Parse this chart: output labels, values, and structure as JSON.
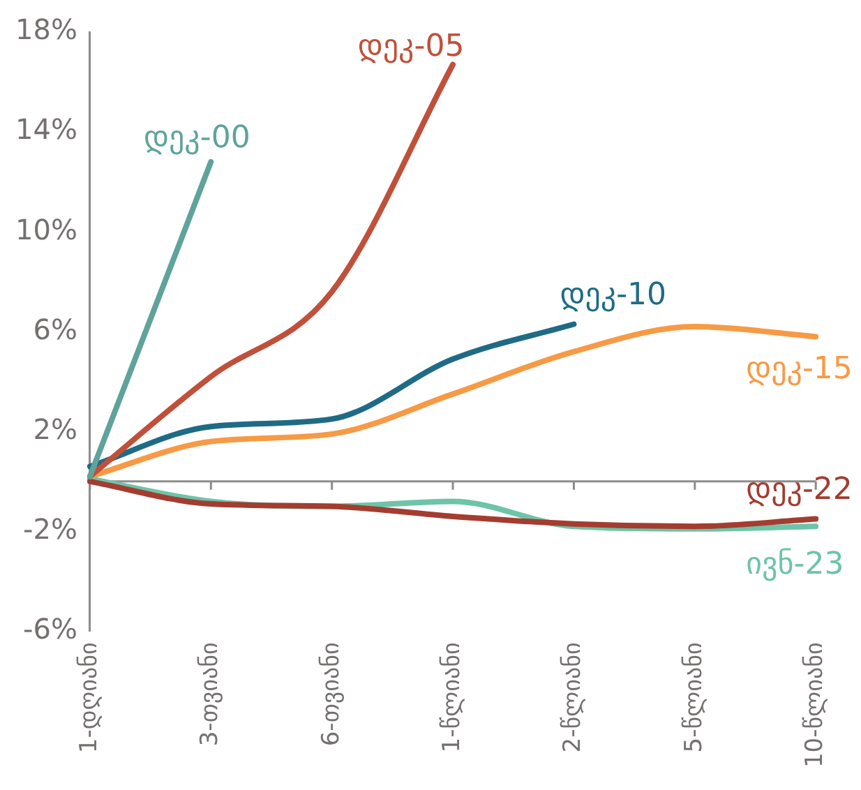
{
  "chart_data": {
    "type": "line",
    "categories": [
      "1-დღიანი",
      "3-თვიანი",
      "6-თვიანი",
      "1-წლიანი",
      "2-წლიანი",
      "5-წლიანი",
      "10-წლიანი"
    ],
    "series": [
      {
        "name": "დეკ-00",
        "color": "#5fa39b",
        "values": [
          0.2,
          12.8,
          null,
          null,
          null,
          null,
          null
        ]
      },
      {
        "name": "დეკ-05",
        "color": "#c0503a",
        "values": [
          0.2,
          4.2,
          7.6,
          16.7,
          null,
          null,
          null
        ]
      },
      {
        "name": "დეკ-10",
        "color": "#1f6b85",
        "values": [
          0.6,
          2.2,
          2.5,
          4.9,
          6.3,
          null,
          null
        ]
      },
      {
        "name": "დეკ-15",
        "color": "#f79a45",
        "values": [
          0.2,
          1.6,
          1.9,
          3.5,
          5.2,
          6.2,
          5.8
        ]
      },
      {
        "name": "დეკ-22",
        "color": "#a33d30",
        "values": [
          0.0,
          -0.9,
          -1.0,
          -1.4,
          -1.7,
          -1.8,
          -1.5
        ]
      },
      {
        "name": "ივნ-23",
        "color": "#6ec4a8",
        "values": [
          0.1,
          -0.8,
          -1.0,
          -0.8,
          -1.8,
          -1.9,
          -1.8
        ]
      }
    ],
    "ylim": [
      -6,
      18
    ],
    "yticks": [
      {
        "value": -6,
        "label": "-6%"
      },
      {
        "value": -2,
        "label": "-2%"
      },
      {
        "value": 2,
        "label": "2%"
      },
      {
        "value": 6,
        "label": "6%"
      },
      {
        "value": 10,
        "label": "10%"
      },
      {
        "value": 14,
        "label": "14%"
      },
      {
        "value": 18,
        "label": "18%"
      }
    ],
    "grid": false,
    "legend": false,
    "marker": "none",
    "line_style": "solid"
  }
}
